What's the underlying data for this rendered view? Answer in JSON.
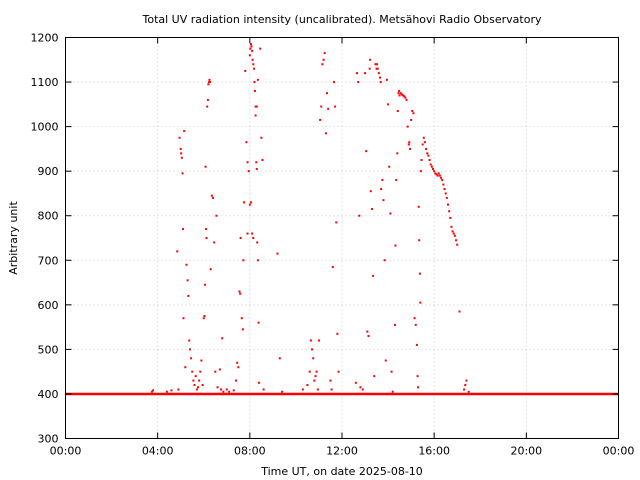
{
  "chart_data": {
    "type": "scatter",
    "title": "Total UV radiation intensity (uncalibrated). Metsähovi Radio Observatory",
    "xlabel": "Time UT, on date 2025-08-10",
    "ylabel": "Arbitrary unit",
    "xlim": [
      0,
      24
    ],
    "ylim": [
      300,
      1200
    ],
    "x_ticks": [
      0,
      4,
      8,
      12,
      16,
      20,
      24
    ],
    "x_tick_labels": [
      "00:00",
      "04:00",
      "08:00",
      "12:00",
      "16:00",
      "20:00",
      "00:00"
    ],
    "y_ticks": [
      300,
      400,
      500,
      600,
      700,
      800,
      900,
      1000,
      1100,
      1200
    ],
    "y_tick_labels": [
      "300",
      "400",
      "500",
      "600",
      "700",
      "800",
      "900",
      "1000",
      "1100",
      "1200"
    ],
    "grid": true,
    "marker_color": "#ff0000",
    "baseline": {
      "y": 400,
      "x_start": 0,
      "x_end": 24
    },
    "series": [
      {
        "values": [
          [
            3.75,
            405
          ],
          [
            3.8,
            408
          ],
          [
            4.4,
            405
          ],
          [
            4.6,
            408
          ],
          [
            4.85,
            720
          ],
          [
            4.9,
            410
          ],
          [
            4.95,
            975
          ],
          [
            5.0,
            950
          ],
          [
            5.02,
            940
          ],
          [
            5.05,
            930
          ],
          [
            5.08,
            895
          ],
          [
            5.1,
            770
          ],
          [
            5.12,
            570
          ],
          [
            5.15,
            990
          ],
          [
            5.2,
            460
          ],
          [
            5.25,
            690
          ],
          [
            5.3,
            655
          ],
          [
            5.33,
            620
          ],
          [
            5.37,
            520
          ],
          [
            5.4,
            500
          ],
          [
            5.45,
            480
          ],
          [
            5.5,
            450
          ],
          [
            5.55,
            430
          ],
          [
            5.6,
            420
          ],
          [
            5.65,
            440
          ],
          [
            5.7,
            410
          ],
          [
            5.75,
            415
          ],
          [
            5.8,
            430
          ],
          [
            5.85,
            450
          ],
          [
            5.9,
            475
          ],
          [
            5.95,
            420
          ],
          [
            6.0,
            570
          ],
          [
            6.03,
            575
          ],
          [
            6.05,
            645
          ],
          [
            6.08,
            910
          ],
          [
            6.1,
            770
          ],
          [
            6.12,
            750
          ],
          [
            6.15,
            1045
          ],
          [
            6.18,
            1060
          ],
          [
            6.2,
            1095
          ],
          [
            6.23,
            1100
          ],
          [
            6.25,
            1105
          ],
          [
            6.27,
            1100
          ],
          [
            6.3,
            680
          ],
          [
            6.35,
            845
          ],
          [
            6.4,
            840
          ],
          [
            6.45,
            740
          ],
          [
            6.5,
            450
          ],
          [
            6.55,
            800
          ],
          [
            6.6,
            415
          ],
          [
            6.7,
            455
          ],
          [
            6.75,
            410
          ],
          [
            6.8,
            525
          ],
          [
            6.85,
            405
          ],
          [
            7.0,
            410
          ],
          [
            7.1,
            405
          ],
          [
            7.3,
            408
          ],
          [
            7.4,
            430
          ],
          [
            7.45,
            470
          ],
          [
            7.5,
            460
          ],
          [
            7.55,
            630
          ],
          [
            7.58,
            625
          ],
          [
            7.6,
            750
          ],
          [
            7.65,
            570
          ],
          [
            7.7,
            545
          ],
          [
            7.72,
            700
          ],
          [
            7.75,
            830
          ],
          [
            7.8,
            1125
          ],
          [
            7.85,
            965
          ],
          [
            7.9,
            920
          ],
          [
            7.95,
            900
          ],
          [
            8.0,
            1160
          ],
          [
            8.02,
            1175
          ],
          [
            8.05,
            1185
          ],
          [
            8.07,
            1180
          ],
          [
            8.1,
            1170
          ],
          [
            8.12,
            1150
          ],
          [
            8.15,
            1140
          ],
          [
            8.18,
            1130
          ],
          [
            8.2,
            1100
          ],
          [
            8.22,
            1080
          ],
          [
            8.25,
            1045
          ],
          [
            8.28,
            920
          ],
          [
            8.3,
            905
          ],
          [
            8.32,
            740
          ],
          [
            8.35,
            700
          ],
          [
            8.38,
            560
          ],
          [
            8.4,
            425
          ],
          [
            8.45,
            1175
          ],
          [
            8.5,
            975
          ],
          [
            8.55,
            925
          ],
          [
            8.6,
            410
          ],
          [
            8.05,
            830
          ],
          [
            8.0,
            825
          ],
          [
            8.1,
            760
          ],
          [
            8.15,
            750
          ],
          [
            7.9,
            760
          ],
          [
            8.25,
            1025
          ],
          [
            8.3,
            1045
          ],
          [
            8.35,
            1105
          ],
          [
            9.2,
            715
          ],
          [
            9.3,
            480
          ],
          [
            9.4,
            405
          ],
          [
            10.3,
            410
          ],
          [
            10.5,
            420
          ],
          [
            10.6,
            450
          ],
          [
            10.65,
            520
          ],
          [
            10.7,
            500
          ],
          [
            10.75,
            480
          ],
          [
            10.8,
            430
          ],
          [
            10.85,
            440
          ],
          [
            10.9,
            450
          ],
          [
            10.95,
            410
          ],
          [
            11.0,
            520
          ],
          [
            11.05,
            1015
          ],
          [
            11.1,
            1045
          ],
          [
            11.15,
            1140
          ],
          [
            11.2,
            1150
          ],
          [
            11.25,
            1165
          ],
          [
            11.3,
            985
          ],
          [
            11.35,
            1075
          ],
          [
            11.4,
            1040
          ],
          [
            11.5,
            430
          ],
          [
            11.55,
            410
          ],
          [
            11.6,
            685
          ],
          [
            11.65,
            1100
          ],
          [
            11.7,
            1045
          ],
          [
            11.75,
            785
          ],
          [
            11.8,
            535
          ],
          [
            11.85,
            450
          ],
          [
            12.6,
            425
          ],
          [
            12.65,
            1120
          ],
          [
            12.7,
            1100
          ],
          [
            12.75,
            800
          ],
          [
            12.8,
            415
          ],
          [
            12.9,
            410
          ],
          [
            13.0,
            1120
          ],
          [
            13.05,
            945
          ],
          [
            13.1,
            540
          ],
          [
            13.15,
            530
          ],
          [
            13.2,
            1130
          ],
          [
            13.22,
            1150
          ],
          [
            13.25,
            855
          ],
          [
            13.3,
            815
          ],
          [
            13.35,
            665
          ],
          [
            13.4,
            440
          ],
          [
            13.45,
            1140
          ],
          [
            13.5,
            1130
          ],
          [
            13.52,
            1140
          ],
          [
            13.55,
            1130
          ],
          [
            13.6,
            1120
          ],
          [
            13.65,
            1110
          ],
          [
            13.68,
            1100
          ],
          [
            13.7,
            860
          ],
          [
            13.75,
            880
          ],
          [
            13.8,
            835
          ],
          [
            13.85,
            700
          ],
          [
            13.9,
            475
          ],
          [
            13.95,
            1105
          ],
          [
            14.0,
            1050
          ],
          [
            14.05,
            910
          ],
          [
            14.1,
            805
          ],
          [
            14.15,
            450
          ],
          [
            14.2,
            405
          ],
          [
            14.3,
            555
          ],
          [
            14.32,
            733
          ],
          [
            14.35,
            880
          ],
          [
            14.4,
            940
          ],
          [
            14.42,
            1035
          ],
          [
            14.45,
            1075
          ],
          [
            14.48,
            1080
          ],
          [
            14.5,
            1070
          ],
          [
            14.55,
            1075
          ],
          [
            14.6,
            1072
          ],
          [
            14.65,
            1070
          ],
          [
            14.7,
            1068
          ],
          [
            14.75,
            1065
          ],
          [
            14.8,
            1060
          ],
          [
            14.85,
            1000
          ],
          [
            14.9,
            960
          ],
          [
            14.92,
            965
          ],
          [
            14.95,
            950
          ],
          [
            15.0,
            1015
          ],
          [
            15.05,
            1035
          ],
          [
            15.1,
            1030
          ],
          [
            15.15,
            570
          ],
          [
            15.2,
            555
          ],
          [
            15.25,
            510
          ],
          [
            15.28,
            440
          ],
          [
            15.3,
            415
          ],
          [
            15.33,
            820
          ],
          [
            15.35,
            745
          ],
          [
            15.38,
            670
          ],
          [
            15.4,
            605
          ],
          [
            15.42,
            900
          ],
          [
            15.45,
            925
          ],
          [
            15.5,
            960
          ],
          [
            15.55,
            975
          ],
          [
            15.6,
            965
          ],
          [
            15.65,
            950
          ],
          [
            15.7,
            940
          ],
          [
            15.75,
            935
          ],
          [
            15.8,
            925
          ],
          [
            15.85,
            915
          ],
          [
            15.9,
            910
          ],
          [
            15.95,
            905
          ],
          [
            16.0,
            900
          ],
          [
            16.05,
            895
          ],
          [
            16.1,
            893
          ],
          [
            16.15,
            890
          ],
          [
            16.2,
            895
          ],
          [
            16.25,
            890
          ],
          [
            16.3,
            885
          ],
          [
            16.35,
            880
          ],
          [
            16.4,
            870
          ],
          [
            16.45,
            860
          ],
          [
            16.5,
            850
          ],
          [
            16.55,
            840
          ],
          [
            16.6,
            825
          ],
          [
            16.65,
            810
          ],
          [
            16.7,
            795
          ],
          [
            16.75,
            775
          ],
          [
            16.8,
            765
          ],
          [
            16.85,
            760
          ],
          [
            16.9,
            755
          ],
          [
            16.95,
            745
          ],
          [
            17.0,
            735
          ],
          [
            17.1,
            585
          ],
          [
            17.3,
            410
          ],
          [
            17.35,
            420
          ],
          [
            17.4,
            430
          ],
          [
            17.5,
            405
          ]
        ]
      }
    ]
  }
}
